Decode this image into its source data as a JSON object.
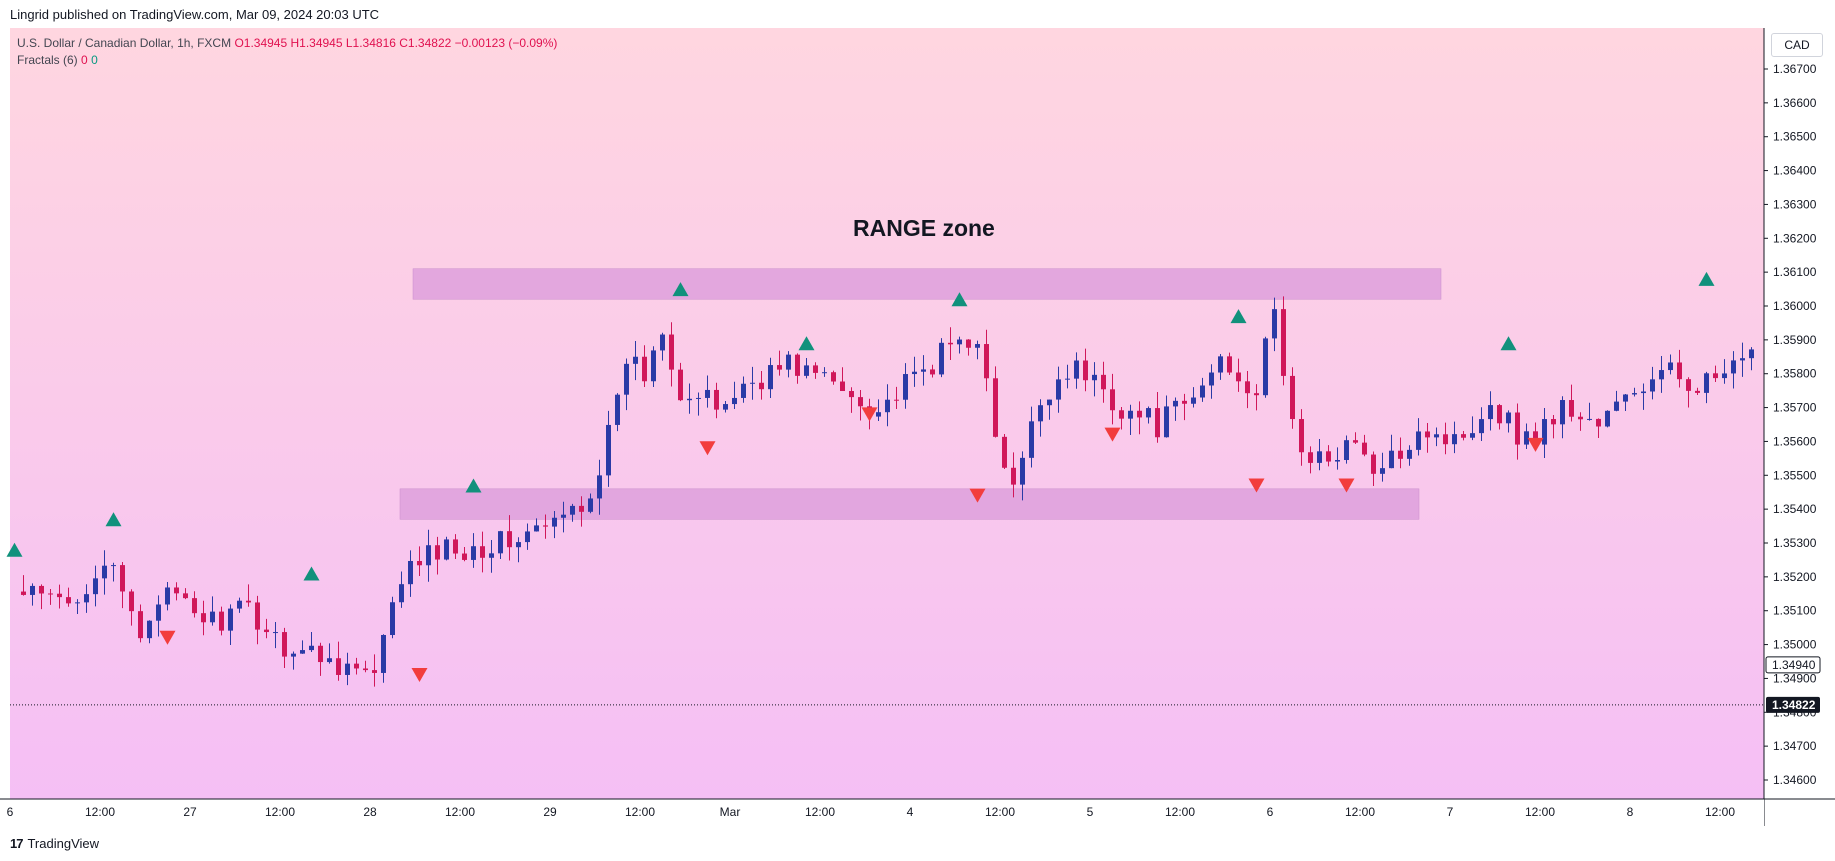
{
  "header": {
    "published": "Lingrid published on TradingView.com, Mar 09, 2024 20:03 UTC"
  },
  "legend": {
    "symbol": "U.S. Dollar / Canadian Dollar, 1h, FXCM",
    "ohlc": "O1.34945  H1.34945  L1.34816  C1.34822  −0.00123 (−0.09%)",
    "indicator_name": "Fractals (6)",
    "indicator_up": "0",
    "indicator_down": "0"
  },
  "currency_button": "CAD",
  "annotation": {
    "title": "RANGE zone"
  },
  "footer": {
    "brand": "TradingView",
    "logo": "17"
  },
  "colors": {
    "bg_top": "#ffd6e0",
    "bg_bottom": "#f5bff5",
    "bull": "#2a3aa6",
    "bear": "#d0175a",
    "zone": "#dea0dc",
    "fractal_up": "#11917c",
    "fractal_down": "#f23d3d"
  },
  "chart_data": {
    "type": "candlestick",
    "ylim": [
      1.3455,
      1.3685
    ],
    "price_ticks": [
      "1.34600",
      "1.34700",
      "1.34800",
      "1.34900",
      "1.35000",
      "1.35100",
      "1.35200",
      "1.35300",
      "1.35400",
      "1.35500",
      "1.35600",
      "1.35700",
      "1.35800",
      "1.35900",
      "1.36000",
      "1.36100",
      "1.36200",
      "1.36300",
      "1.36400",
      "1.36500",
      "1.36600",
      "1.36700"
    ],
    "price_labels": {
      "last_price": "1.34822",
      "high_price": "1.34940"
    },
    "time_ticks": [
      "6",
      "12:00",
      "27",
      "12:00",
      "28",
      "12:00",
      "29",
      "12:00",
      "Mar",
      "12:00",
      "4",
      "12:00",
      "5",
      "12:00",
      "6",
      "12:00",
      "7",
      "12:00",
      "8",
      "12:00"
    ],
    "zones": [
      {
        "name": "resistance",
        "y_top": 1.3611,
        "y_bottom": 1.3602
      },
      {
        "name": "support",
        "y_top": 1.3546,
        "y_bottom": 1.3537
      }
    ],
    "anchors": [
      [
        0,
        1.3515
      ],
      [
        6,
        1.3512
      ],
      [
        10,
        1.3525
      ],
      [
        14,
        1.3503
      ],
      [
        16,
        1.3515
      ],
      [
        22,
        1.3507
      ],
      [
        26,
        1.351
      ],
      [
        30,
        1.35
      ],
      [
        36,
        1.3495
      ],
      [
        40,
        1.349
      ],
      [
        43,
        1.352
      ],
      [
        47,
        1.3528
      ],
      [
        54,
        1.353
      ],
      [
        60,
        1.3535
      ],
      [
        64,
        1.3545
      ],
      [
        67,
        1.357
      ],
      [
        68,
        1.3585
      ],
      [
        70,
        1.358
      ],
      [
        72,
        1.3595
      ],
      [
        74,
        1.3575
      ],
      [
        78,
        1.357
      ],
      [
        82,
        1.3578
      ],
      [
        86,
        1.3583
      ],
      [
        89,
        1.358
      ],
      [
        92,
        1.3575
      ],
      [
        96,
        1.357
      ],
      [
        100,
        1.3578
      ],
      [
        104,
        1.3588
      ],
      [
        107,
        1.3592
      ],
      [
        109,
        1.356
      ],
      [
        111,
        1.3545
      ],
      [
        114,
        1.3572
      ],
      [
        117,
        1.3582
      ],
      [
        120,
        1.3578
      ],
      [
        123,
        1.357
      ],
      [
        127,
        1.3565
      ],
      [
        131,
        1.3572
      ],
      [
        134,
        1.3585
      ],
      [
        138,
        1.3575
      ],
      [
        140,
        1.3598
      ],
      [
        142,
        1.3565
      ],
      [
        144,
        1.3552
      ],
      [
        148,
        1.356
      ],
      [
        152,
        1.355
      ],
      [
        156,
        1.3565
      ],
      [
        160,
        1.356
      ],
      [
        164,
        1.3572
      ],
      [
        168,
        1.356
      ],
      [
        172,
        1.357
      ],
      [
        176,
        1.3565
      ],
      [
        180,
        1.3575
      ],
      [
        184,
        1.358
      ],
      [
        188,
        1.3577
      ],
      [
        192,
        1.3582
      ],
      [
        196,
        1.3592
      ],
      [
        199,
        1.3597
      ],
      [
        202,
        1.3583
      ],
      [
        205,
        1.3597
      ],
      [
        208,
        1.3575
      ],
      [
        210,
        1.3568
      ],
      [
        214,
        1.3585
      ],
      [
        218,
        1.3593
      ],
      [
        222,
        1.3595
      ],
      [
        226,
        1.3585
      ],
      [
        230,
        1.3583
      ],
      [
        234,
        1.3588
      ],
      [
        237,
        1.358
      ],
      [
        239,
        1.3558
      ],
      [
        240,
        1.3532
      ],
      [
        243,
        1.3512
      ],
      [
        246,
        1.351
      ],
      [
        250,
        1.3515
      ],
      [
        254,
        1.3512
      ],
      [
        258,
        1.351
      ],
      [
        262,
        1.3505
      ],
      [
        266,
        1.3503
      ],
      [
        269,
        1.349
      ],
      [
        272,
        1.348
      ],
      [
        275,
        1.3465
      ],
      [
        279,
        1.3455
      ],
      [
        284,
        1.3455
      ],
      [
        290,
        1.345
      ],
      [
        293,
        1.3455
      ],
      [
        294,
        1.3475
      ],
      [
        295,
        1.3482
      ]
    ],
    "fractals": [
      {
        "type": "up",
        "bar": 0,
        "price": 1.3528
      },
      {
        "type": "up",
        "bar": 11,
        "price": 1.3537
      },
      {
        "type": "down",
        "bar": 17,
        "price": 1.3502
      },
      {
        "type": "up",
        "bar": 33,
        "price": 1.3521
      },
      {
        "type": "down",
        "bar": 45,
        "price": 1.3491
      },
      {
        "type": "up",
        "bar": 51,
        "price": 1.3547
      },
      {
        "type": "up",
        "bar": 74,
        "price": 1.3605
      },
      {
        "type": "down",
        "bar": 77,
        "price": 1.3558
      },
      {
        "type": "up",
        "bar": 88,
        "price": 1.3589
      },
      {
        "type": "down",
        "bar": 95,
        "price": 1.3568
      },
      {
        "type": "up",
        "bar": 105,
        "price": 1.3602
      },
      {
        "type": "down",
        "bar": 107,
        "price": 1.3544
      },
      {
        "type": "down",
        "bar": 122,
        "price": 1.3562
      },
      {
        "type": "up",
        "bar": 136,
        "price": 1.3597
      },
      {
        "type": "down",
        "bar": 138,
        "price": 1.3547
      },
      {
        "type": "down",
        "bar": 148,
        "price": 1.3547
      },
      {
        "type": "up",
        "bar": 166,
        "price": 1.3589
      },
      {
        "type": "down",
        "bar": 169,
        "price": 1.3559
      },
      {
        "type": "up",
        "bar": 188,
        "price": 1.3608
      },
      {
        "type": "down",
        "bar": 197,
        "price": 1.3556
      },
      {
        "type": "up",
        "bar": 218,
        "price": 1.3599
      },
      {
        "type": "down",
        "bar": 230,
        "price": 1.3494
      },
      {
        "type": "up",
        "bar": 240,
        "price": 1.3531
      }
    ],
    "legend_position": "top-left"
  }
}
